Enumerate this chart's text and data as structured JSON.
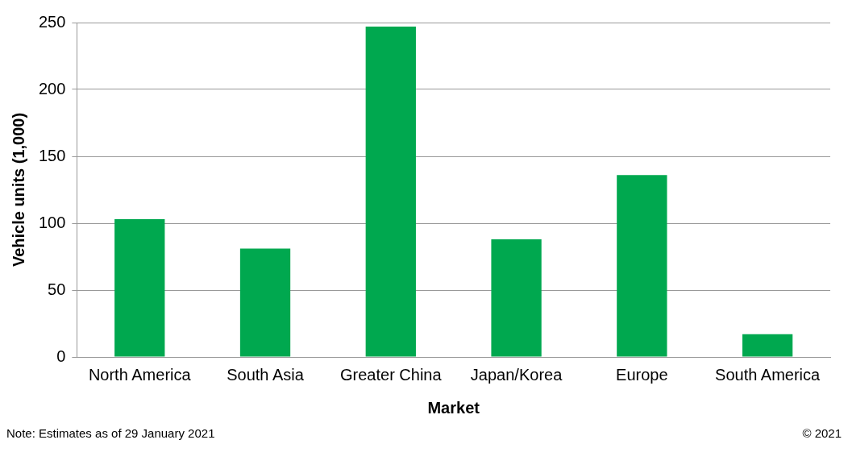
{
  "chart_data": {
    "type": "bar",
    "xlabel": "Market",
    "ylabel": "Vehicle units (1,000)",
    "categories": [
      "North America",
      "South Asia",
      "Greater China",
      "Japan/Korea",
      "Europe",
      "South America"
    ],
    "values": [
      103,
      81,
      247,
      88,
      136,
      17
    ],
    "color": "#00a84f",
    "ylim": [
      0,
      250
    ],
    "yticks": [
      0,
      50,
      100,
      150,
      200,
      250
    ],
    "grid": "y",
    "legend": false,
    "annotations": [
      "Note: Estimates as of 29 January 2021",
      "© 2021"
    ]
  }
}
